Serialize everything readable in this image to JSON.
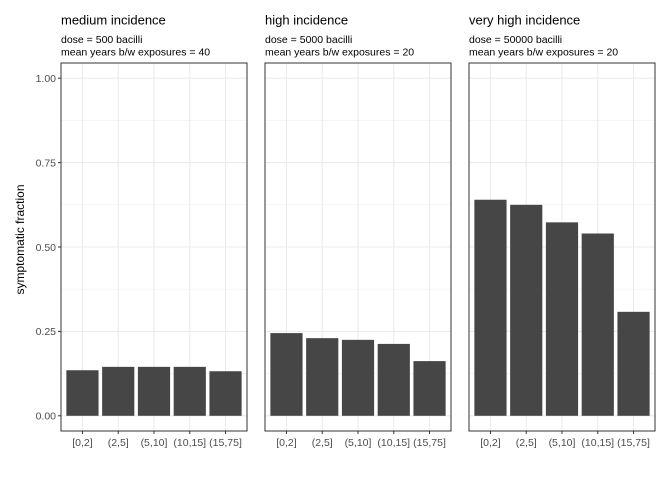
{
  "chart_data": [
    {
      "type": "bar",
      "title": "medium incidence",
      "subtitle_lines": [
        "dose = 500 bacilli",
        "mean years b/w exposures = 40"
      ],
      "categories": [
        "[0,2]",
        "(2,5]",
        "(5,10]",
        "(10,15]",
        "(15,75]"
      ],
      "values": [
        0.135,
        0.145,
        0.145,
        0.145,
        0.132
      ],
      "ylabel": "symptomatic fraction",
      "ylim": [
        -0.045,
        1.045
      ],
      "yticks": [
        0.0,
        0.25,
        0.5,
        0.75,
        1.0
      ],
      "ytick_labels": [
        "0.00",
        "0.25",
        "0.50",
        "0.75",
        "1.00"
      ],
      "grid": true
    },
    {
      "type": "bar",
      "title": "high incidence",
      "subtitle_lines": [
        "dose = 5000 bacilli",
        "mean years b/w exposures = 20"
      ],
      "categories": [
        "[0,2]",
        "(2,5]",
        "(5,10]",
        "(10,15]",
        "(15,75]"
      ],
      "values": [
        0.245,
        0.23,
        0.225,
        0.213,
        0.162
      ],
      "ylim": [
        -0.045,
        1.045
      ],
      "grid": true
    },
    {
      "type": "bar",
      "title": "very high incidence",
      "subtitle_lines": [
        "dose = 50000 bacilli",
        "mean years b/w exposures = 20"
      ],
      "categories": [
        "[0,2]",
        "(2,5]",
        "(5,10]",
        "(10,15]",
        "(15,75]"
      ],
      "values": [
        0.64,
        0.625,
        0.573,
        0.54,
        0.308
      ],
      "ylim": [
        -0.045,
        1.045
      ],
      "grid": true
    }
  ],
  "colors": {
    "bar": "#464646",
    "grid_major": "#ebebeb",
    "grid_minor": "#f2f2f2",
    "panel_border": "#333333",
    "tick_text": "#4d4d4d"
  }
}
